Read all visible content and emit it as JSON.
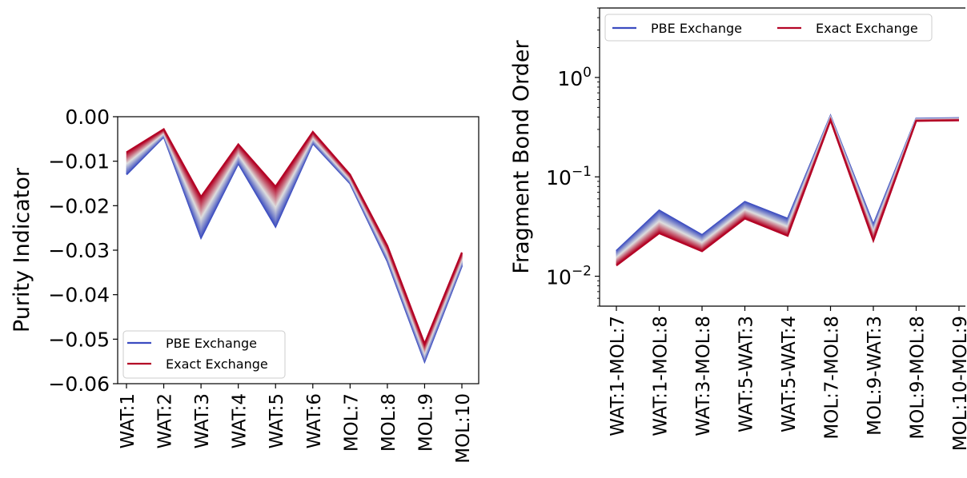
{
  "chart_data": [
    {
      "type": "line",
      "title": "",
      "xlabel": "",
      "ylabel": "Purity Indicator",
      "categories": [
        "WAT:1",
        "WAT:2",
        "WAT:3",
        "WAT:4",
        "WAT:5",
        "WAT:6",
        "MOL:7",
        "MOL:8",
        "MOL:9",
        "MOL:10"
      ],
      "ylim": [
        -0.06,
        0.0
      ],
      "yticks": [
        0.0,
        -0.01,
        -0.02,
        -0.03,
        -0.04,
        -0.05,
        -0.06
      ],
      "ytick_labels": [
        "0.00",
        "−0.01",
        "−0.02",
        "−0.03",
        "−0.04",
        "−0.05",
        "−0.06"
      ],
      "yscale": "linear",
      "legend_position": "lower-left",
      "series": [
        {
          "name": "PBE Exchange",
          "color": "#3b4cc0",
          "values": [
            -0.013,
            -0.0045,
            -0.0272,
            -0.0105,
            -0.0247,
            -0.006,
            -0.015,
            -0.0325,
            -0.055,
            -0.0335
          ]
        },
        {
          "name": "Exact Exchange",
          "color": "#b40426",
          "values": [
            -0.008,
            -0.0028,
            -0.018,
            -0.0062,
            -0.0157,
            -0.0034,
            -0.013,
            -0.029,
            -0.051,
            -0.0305
          ]
        }
      ]
    },
    {
      "type": "line",
      "title": "",
      "xlabel": "",
      "ylabel": "Fragment Bond Order",
      "categories": [
        "WAT:1-MOL:7",
        "WAT:1-MOL:8",
        "WAT:3-MOL:8",
        "WAT:5-WAT:3",
        "WAT:5-WAT:4",
        "MOL:7-MOL:8",
        "MOL:9-WAT:3",
        "MOL:9-MOL:8",
        "MOL:10-MOL:9"
      ],
      "yscale": "log",
      "ylim": [
        0.005,
        5.0
      ],
      "yticks": [
        0.01,
        0.1,
        1.0
      ],
      "ytick_labels": [
        {
          "base": "10",
          "exp": "−2"
        },
        {
          "base": "10",
          "exp": "−1"
        },
        {
          "base": "10",
          "exp": "0"
        }
      ],
      "legend_position": "top",
      "series": [
        {
          "name": "PBE Exchange",
          "color": "#3b4cc0",
          "values": [
            0.018,
            0.046,
            0.026,
            0.056,
            0.038,
            0.41,
            0.033,
            0.385,
            0.39
          ]
        },
        {
          "name": "Exact Exchange",
          "color": "#b40426",
          "values": [
            0.0128,
            0.027,
            0.0178,
            0.038,
            0.0255,
            0.37,
            0.0228,
            0.365,
            0.37
          ]
        }
      ]
    }
  ]
}
